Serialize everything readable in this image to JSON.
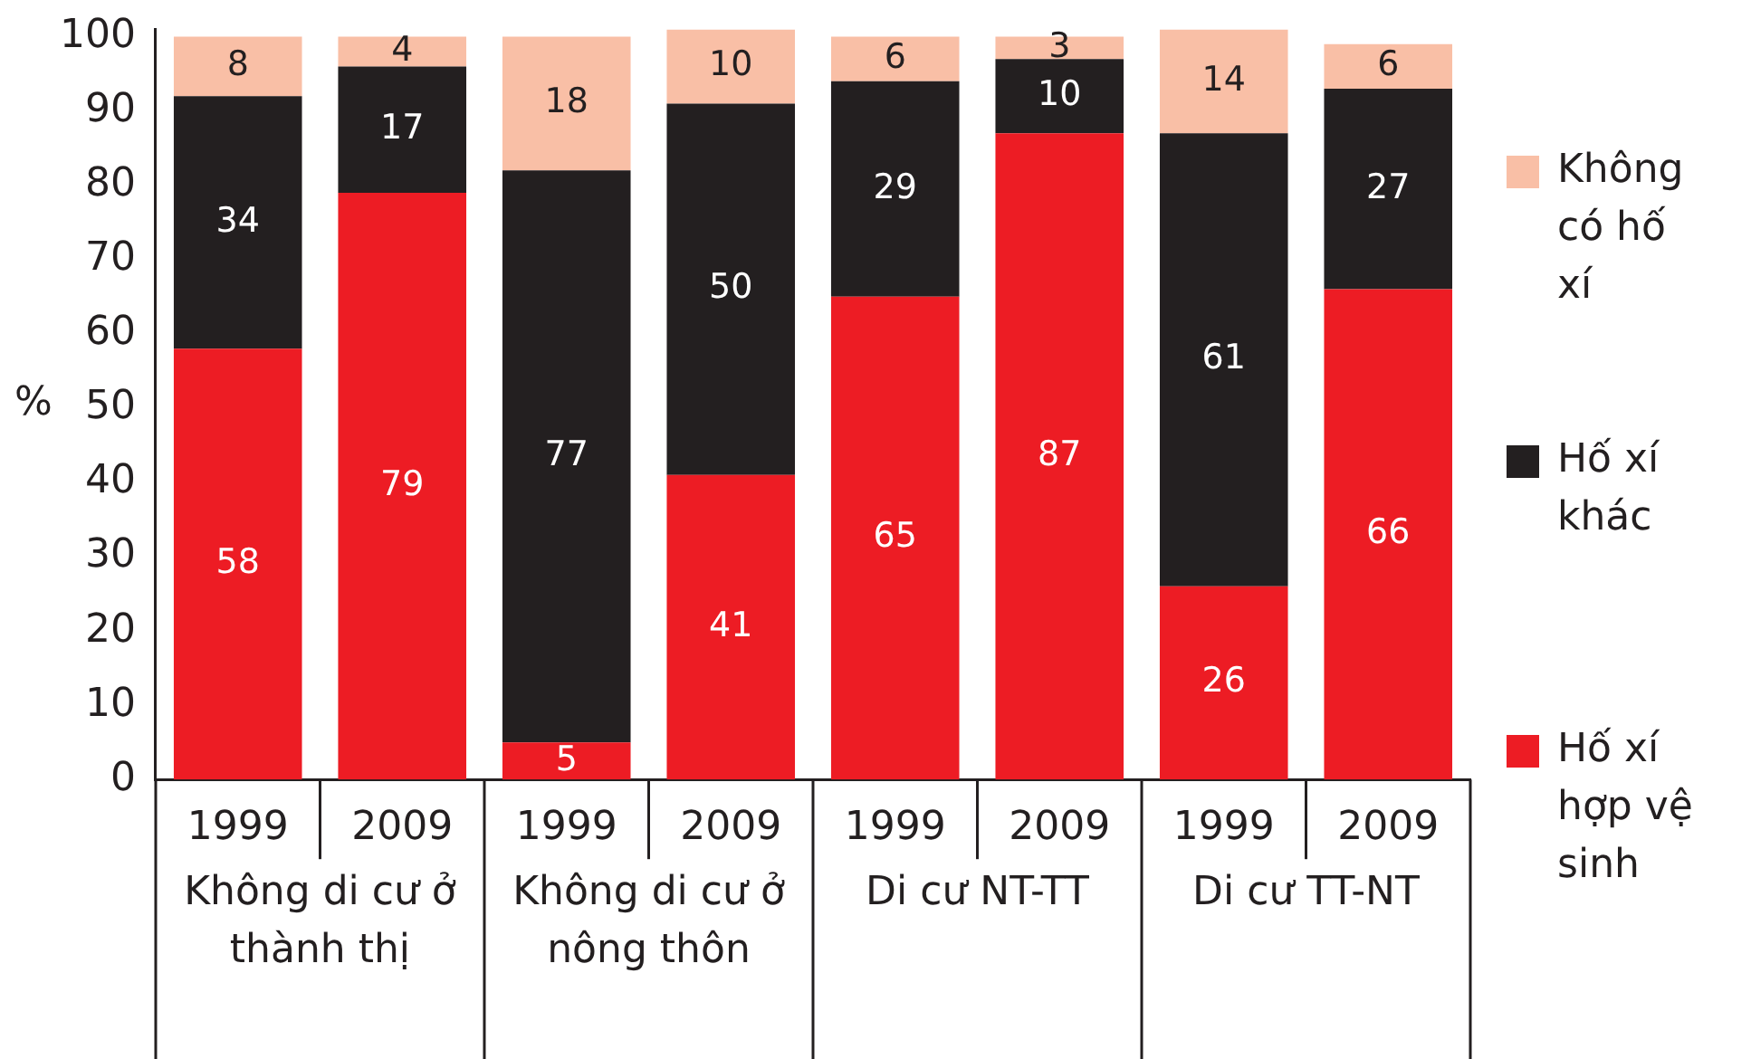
{
  "chart_data": {
    "type": "bar",
    "stacked": true,
    "ylabel": "%",
    "categories": [
      "1999",
      "2009",
      "1999",
      "2009",
      "1999",
      "2009",
      "1999",
      "2009"
    ],
    "series": [
      {
        "name": "Hố xí hợp vệ sinh",
        "color": "#ed1c24",
        "values": [
          58,
          79,
          5,
          41,
          65,
          87,
          26,
          66
        ]
      },
      {
        "name": "Hố xí khác",
        "color": "#231f20",
        "values": [
          34,
          17,
          77,
          50,
          29,
          10,
          61,
          27
        ]
      },
      {
        "name": "Không có hố xí",
        "color": "#f9bfa6",
        "values": [
          8,
          4,
          18,
          10,
          6,
          3,
          14,
          6
        ]
      }
    ],
    "ylim": [
      0,
      101
    ],
    "yticks": [
      0,
      10,
      20,
      30,
      40,
      50,
      60,
      70,
      80,
      90,
      100
    ],
    "data_labels": true,
    "grid": false,
    "legend": "right",
    "annotations": [
      "Không di cư ở thành thị",
      "Không di cư ở nông thôn",
      "Di cư NT-TT",
      "Di cư TT-NT"
    ]
  }
}
